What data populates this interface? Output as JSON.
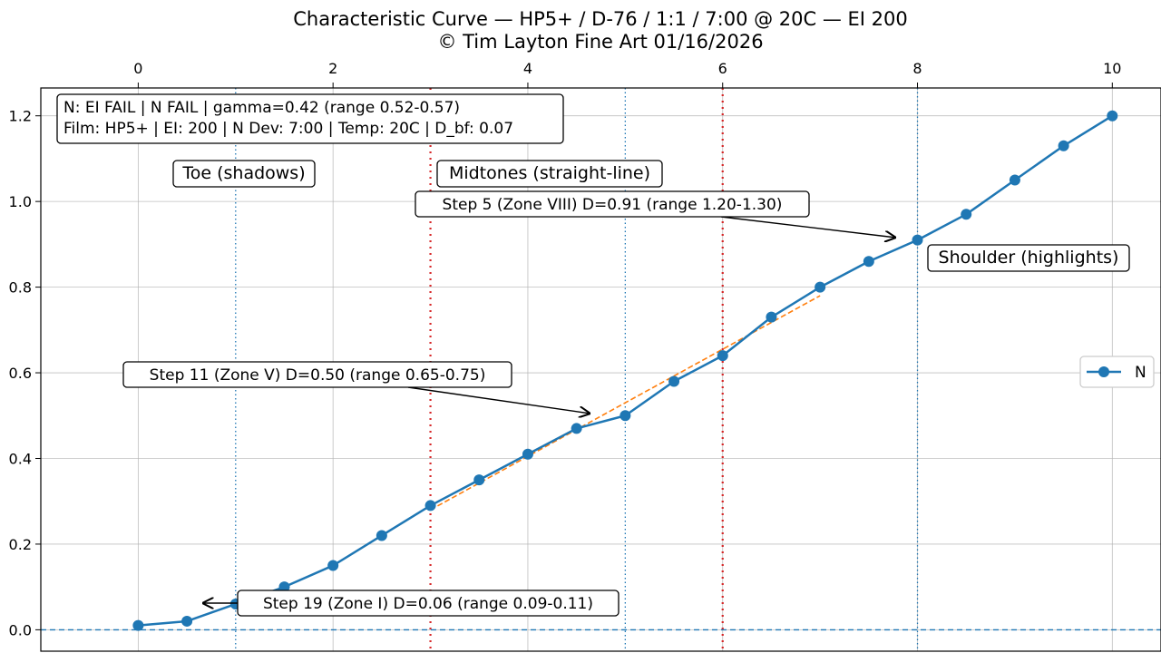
{
  "chart_data": {
    "type": "line",
    "title": "Characteristic Curve — HP5+ / D-76 / 1:1 / 7:00 @ 20C — EI 200",
    "subtitle": "© Tim Layton Fine Art 01/16/2026",
    "xlabel": "",
    "ylabel": "",
    "xlim": [
      -1.0,
      10.5
    ],
    "ylim": [
      -0.05,
      1.265
    ],
    "x_ticks": [
      "0",
      "2",
      "4",
      "6",
      "8",
      "10"
    ],
    "y_ticks": [
      "0.0",
      "0.2",
      "0.4",
      "0.6",
      "0.8",
      "1.0",
      "1.2"
    ],
    "grid": true,
    "x_axis_position": "top",
    "legend": {
      "placement": "center-right",
      "entries": [
        "N"
      ]
    },
    "series": [
      {
        "name": "N",
        "color": "#1f77b4",
        "x": [
          0,
          0.5,
          1,
          1.5,
          2,
          2.5,
          3,
          3.5,
          4,
          4.5,
          5,
          5.5,
          6,
          6.5,
          7,
          7.5,
          8,
          8.5,
          9,
          9.5,
          10
        ],
        "y": [
          0.01,
          0.02,
          0.06,
          0.1,
          0.15,
          0.22,
          0.29,
          0.35,
          0.41,
          0.47,
          0.5,
          0.58,
          0.64,
          0.73,
          0.8,
          0.86,
          0.91,
          0.97,
          1.05,
          1.13,
          1.2
        ]
      }
    ],
    "fit_line": {
      "color": "#ff7f0e",
      "style": "dashed",
      "x": [
        3,
        7
      ],
      "y": [
        0.28,
        0.78
      ]
    },
    "base_fog_line": {
      "y": 0.0,
      "color": "#1f77b4",
      "style": "dashed"
    },
    "vertical_lines": [
      {
        "x": 1,
        "color": "#1f77b4",
        "style": "dotted"
      },
      {
        "x": 3,
        "color": "#d62728",
        "style": "dotted"
      },
      {
        "x": 5,
        "color": "#1f77b4",
        "style": "dotted"
      },
      {
        "x": 6,
        "color": "#d62728",
        "style": "dotted"
      },
      {
        "x": 8,
        "color": "#1f77b4",
        "style": "dotted"
      }
    ],
    "info_box": {
      "line1": "N: EI FAIL | N FAIL | gamma=0.42 (range 0.52-0.57)",
      "line2": "Film: HP5+ | EI: 200 | N Dev: 7:00 | Temp: 20C | D_bf: 0.07"
    },
    "region_labels": [
      "Toe (shadows)",
      "Midtones (straight-line)",
      "Shoulder (highlights)"
    ],
    "annotations": [
      {
        "text": "Step 5 (Zone VIII)  D=0.91  (range 1.20-1.30)",
        "point_x": 8,
        "point_y": 0.91
      },
      {
        "text": "Step 11 (Zone V)  D=0.50  (range 0.65-0.75)",
        "point_x": 5,
        "point_y": 0.5
      },
      {
        "text": "Step 19 (Zone I)  D=0.06  (range 0.09-0.11)",
        "point_x": 1,
        "point_y": 0.06
      }
    ]
  }
}
